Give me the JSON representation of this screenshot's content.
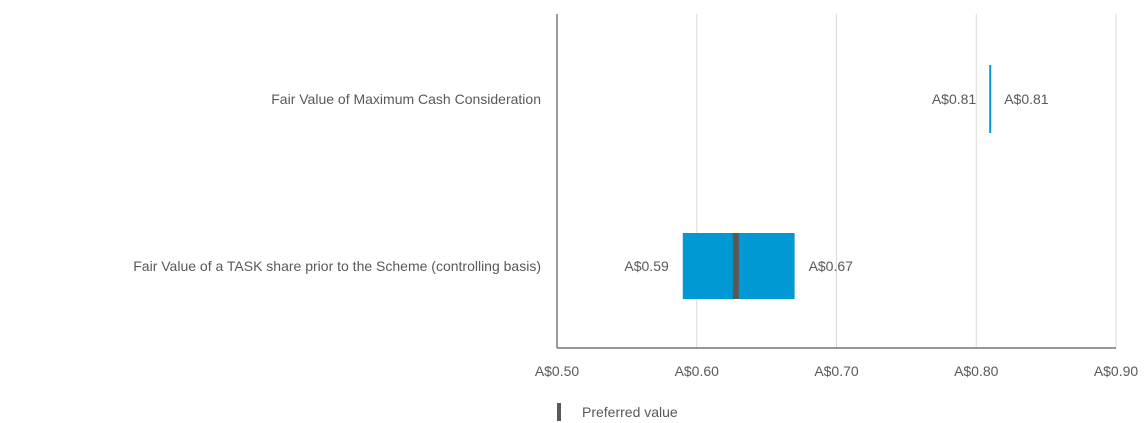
{
  "chart_data": {
    "type": "bar",
    "subtype": "horizontal-floating-range",
    "orientation": "horizontal",
    "categories": [
      "Fair Value of Maximum Cash Consideration",
      "Fair Value of a TASK share prior to the Scheme (controlling basis)"
    ],
    "series": [
      {
        "low": [
          0.81,
          0.59
        ],
        "high": [
          0.81,
          0.67
        ],
        "low_labels": [
          "A$0.81",
          "A$0.59"
        ],
        "high_labels": [
          "A$0.81",
          "A$0.67"
        ],
        "preferred": [
          null,
          0.628
        ]
      }
    ],
    "xlim": [
      0.5,
      0.9
    ],
    "xticks": [
      0.5,
      0.6,
      0.7,
      0.8,
      0.9
    ],
    "xtick_labels": [
      "A$0.50",
      "A$0.60",
      "A$0.70",
      "A$0.80",
      "A$0.90"
    ],
    "grid": "vertical",
    "legend": {
      "placement": "bottom-left",
      "items": [
        {
          "label": "Preferred value",
          "marker": "vertical-bar"
        }
      ]
    },
    "colors": {
      "range": "#0099d4",
      "preferred": "#595959",
      "grid": "#d9d9d9",
      "axis": "#595959",
      "text": "#595959"
    }
  }
}
